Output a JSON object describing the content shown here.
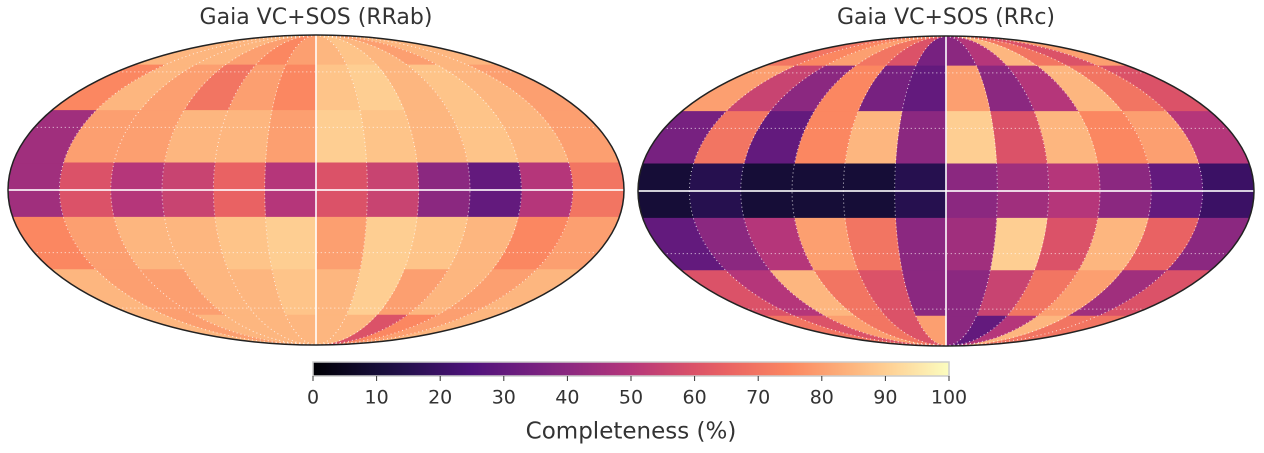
{
  "chart_data": [
    {
      "type": "mollweide",
      "title": "Gaia VC+SOS (RRab)",
      "colormap": "magma",
      "zlim": [
        0,
        100
      ],
      "z": [
        [
          85,
          85,
          80,
          85,
          88,
          85,
          80,
          75,
          80,
          85,
          85,
          85
        ],
        [
          80,
          85,
          88,
          85,
          90,
          88,
          75,
          80,
          70,
          80,
          85,
          75
        ],
        [
          80,
          85,
          88,
          85,
          88,
          90,
          80,
          85,
          85,
          80,
          80,
          45
        ],
        [
          70,
          50,
          30,
          40,
          55,
          60,
          50,
          65,
          55,
          50,
          60,
          45
        ],
        [
          80,
          75,
          85,
          88,
          90,
          80,
          90,
          88,
          85,
          85,
          80,
          75
        ],
        [
          85,
          80,
          85,
          80,
          90,
          85,
          88,
          85,
          85,
          80,
          80,
          85
        ],
        [
          85,
          80,
          75,
          60,
          85,
          85,
          85,
          85,
          85,
          85,
          80,
          85
        ]
      ]
    },
    {
      "type": "mollweide",
      "title": "Gaia VC+SOS (RRc)",
      "colormap": "magma",
      "zlim": [
        0,
        100
      ],
      "z": [
        [
          80,
          60,
          70,
          85,
          50,
          40,
          35,
          60,
          70,
          80,
          75,
          70
        ],
        [
          60,
          70,
          85,
          50,
          40,
          80,
          30,
          35,
          75,
          40,
          55,
          80
        ],
        [
          50,
          80,
          75,
          85,
          60,
          90,
          40,
          85,
          75,
          30,
          70,
          35
        ],
        [
          20,
          30,
          40,
          50,
          45,
          40,
          15,
          10,
          10,
          10,
          15,
          10
        ],
        [
          40,
          65,
          85,
          60,
          90,
          45,
          40,
          70,
          80,
          50,
          40,
          30
        ],
        [
          60,
          45,
          80,
          70,
          55,
          40,
          40,
          60,
          70,
          85,
          50,
          60
        ],
        [
          70,
          70,
          85,
          50,
          30,
          40,
          80,
          60,
          70,
          80,
          60,
          70
        ]
      ]
    },
    {
      "type": "colorbar",
      "colormap": "magma",
      "xlabel": "Completeness (%)",
      "xlim": [
        0,
        100
      ],
      "xticks": [
        0,
        10,
        20,
        30,
        40,
        50,
        60,
        70,
        80,
        90,
        100
      ]
    }
  ]
}
